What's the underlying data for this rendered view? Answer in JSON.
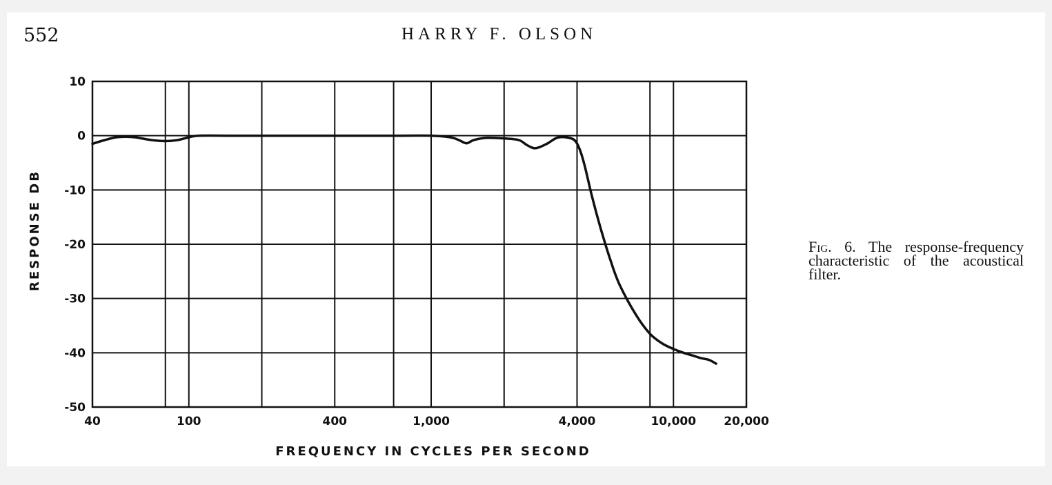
{
  "page": {
    "number": "552",
    "running_head": "HARRY F. OLSON"
  },
  "caption": {
    "label": "Fig. 6.",
    "text": "The response-frequency characteristic of the acoustical filter."
  },
  "colors": {
    "ink": "#111111",
    "paper": "#ffffff",
    "background": "#f2f2f2"
  },
  "chart_data": {
    "type": "line",
    "xlabel": "FREQUENCY IN CYCLES PER SECOND",
    "ylabel": "RESPONSE DB",
    "x_scale": "log",
    "xlim": [
      40,
      20000
    ],
    "ylim": [
      -50,
      10
    ],
    "x_ticks": [
      {
        "value": 40,
        "label": "40"
      },
      {
        "value": 100,
        "label": "100"
      },
      {
        "value": 400,
        "label": "400"
      },
      {
        "value": 1000,
        "label": "1,000"
      },
      {
        "value": 4000,
        "label": "4,000"
      },
      {
        "value": 10000,
        "label": "10,000"
      },
      {
        "value": 20000,
        "label": "20,000"
      }
    ],
    "x_gridlines": [
      40,
      80,
      100,
      200,
      400,
      700,
      1000,
      2000,
      4000,
      8000,
      10000,
      20000
    ],
    "y_ticks": [
      {
        "value": 10,
        "label": "10"
      },
      {
        "value": 0,
        "label": "0"
      },
      {
        "value": -10,
        "label": "-10"
      },
      {
        "value": -20,
        "label": "-20"
      },
      {
        "value": -30,
        "label": "-30"
      },
      {
        "value": -40,
        "label": "-40"
      },
      {
        "value": -50,
        "label": "-50"
      }
    ],
    "grid": true,
    "series": [
      {
        "x": [
          40,
          45,
          50,
          55,
          60,
          70,
          80,
          90,
          100,
          110,
          150,
          200,
          400,
          700,
          1000,
          1200,
          1300,
          1400,
          1500,
          1700,
          2000,
          2300,
          2500,
          2700,
          3000,
          3300,
          3600,
          3900,
          4100,
          4300,
          4600,
          5000,
          5500,
          6000,
          7000,
          8000,
          9000,
          10000,
          11000,
          12000,
          13000,
          14000,
          15000
        ],
        "y": [
          -1.5,
          -0.8,
          -0.3,
          -0.2,
          -0.3,
          -0.8,
          -1.0,
          -0.8,
          -0.3,
          0,
          0,
          0,
          0,
          0,
          0,
          -0.3,
          -0.8,
          -1.4,
          -0.8,
          -0.4,
          -0.5,
          -0.8,
          -1.8,
          -2.3,
          -1.5,
          -0.4,
          -0.3,
          -0.8,
          -2.5,
          -5.5,
          -11,
          -17,
          -23,
          -27.5,
          -33,
          -36.5,
          -38.3,
          -39.3,
          -40,
          -40.5,
          -41,
          -41.3,
          -42
        ]
      }
    ]
  }
}
